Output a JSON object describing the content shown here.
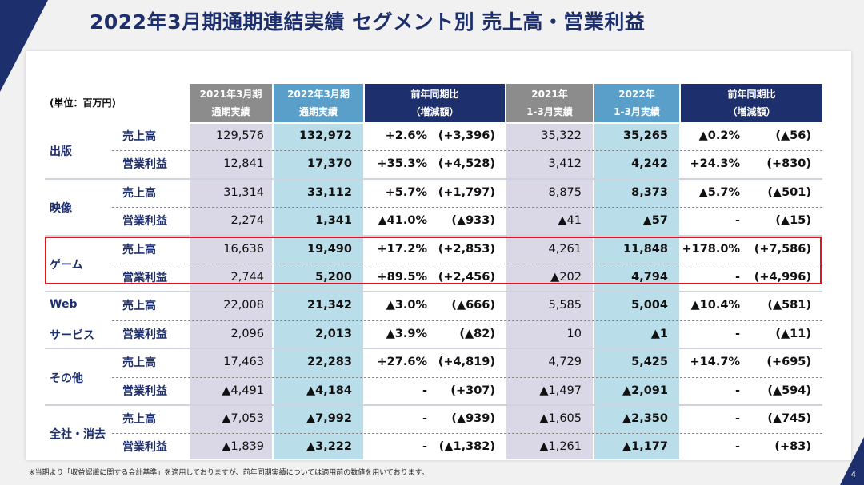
{
  "title": "2022年3月期通期連結実績 セグメント別 売上高・営業利益",
  "unit": "(単位：百万円)",
  "headers": {
    "prev_fy": [
      "2021年3月期",
      "通期実績"
    ],
    "curr_fy": [
      "2022年3月期",
      "通期実績"
    ],
    "fy_cmp": [
      "前年同期比",
      "（増減額）"
    ],
    "prev_q": [
      "2021年",
      "1-3月実績"
    ],
    "curr_q": [
      "2022年",
      "1-3月実績"
    ],
    "q_cmp": [
      "前年同期比",
      "（増減額）"
    ]
  },
  "segments": [
    {
      "name": "出版",
      "rows": [
        {
          "metric": "売上高",
          "prev_fy": "129,576",
          "curr_fy": "132,972",
          "fy_pct": "+2.6%",
          "fy_amt": "(+3,396)",
          "prev_q": "35,322",
          "curr_q": "35,265",
          "q_pct": "▲0.2%",
          "q_amt": "(▲56)"
        },
        {
          "metric": "営業利益",
          "prev_fy": "12,841",
          "curr_fy": "17,370",
          "fy_pct": "+35.3%",
          "fy_amt": "(+4,528)",
          "prev_q": "3,412",
          "curr_q": "4,242",
          "q_pct": "+24.3%",
          "q_amt": "(+830)"
        }
      ]
    },
    {
      "name": "映像",
      "rows": [
        {
          "metric": "売上高",
          "prev_fy": "31,314",
          "curr_fy": "33,112",
          "fy_pct": "+5.7%",
          "fy_amt": "(+1,797)",
          "prev_q": "8,875",
          "curr_q": "8,373",
          "q_pct": "▲5.7%",
          "q_amt": "(▲501)"
        },
        {
          "metric": "営業利益",
          "prev_fy": "2,274",
          "curr_fy": "1,341",
          "fy_pct": "▲41.0%",
          "fy_amt": "(▲933)",
          "prev_q": "▲41",
          "curr_q": "▲57",
          "q_pct": "-",
          "q_amt": "(▲15)"
        }
      ]
    },
    {
      "name": "ゲーム",
      "rows": [
        {
          "metric": "売上高",
          "prev_fy": "16,636",
          "curr_fy": "19,490",
          "fy_pct": "+17.2%",
          "fy_amt": "(+2,853)",
          "prev_q": "4,261",
          "curr_q": "11,848",
          "q_pct": "+178.0%",
          "q_amt": "(+7,586)"
        },
        {
          "metric": "営業利益",
          "prev_fy": "2,744",
          "curr_fy": "5,200",
          "fy_pct": "+89.5%",
          "fy_amt": "(+2,456)",
          "prev_q": "▲202",
          "curr_q": "4,794",
          "q_pct": "-",
          "q_amt": "(+4,996)"
        }
      ]
    },
    {
      "name": "Web",
      "name2": "サービス",
      "rows": [
        {
          "metric": "売上高",
          "prev_fy": "22,008",
          "curr_fy": "21,342",
          "fy_pct": "▲3.0%",
          "fy_amt": "(▲666)",
          "prev_q": "5,585",
          "curr_q": "5,004",
          "q_pct": "▲10.4%",
          "q_amt": "(▲581)"
        },
        {
          "metric": "営業利益",
          "prev_fy": "2,096",
          "curr_fy": "2,013",
          "fy_pct": "▲3.9%",
          "fy_amt": "(▲82)",
          "prev_q": "10",
          "curr_q": "▲1",
          "q_pct": "-",
          "q_amt": "(▲11)"
        }
      ]
    },
    {
      "name": "その他",
      "rows": [
        {
          "metric": "売上高",
          "prev_fy": "17,463",
          "curr_fy": "22,283",
          "fy_pct": "+27.6%",
          "fy_amt": "(+4,819)",
          "prev_q": "4,729",
          "curr_q": "5,425",
          "q_pct": "+14.7%",
          "q_amt": "(+695)"
        },
        {
          "metric": "営業利益",
          "prev_fy": "▲4,491",
          "curr_fy": "▲4,184",
          "fy_pct": "-",
          "fy_amt": "(+307)",
          "prev_q": "▲1,497",
          "curr_q": "▲2,091",
          "q_pct": "-",
          "q_amt": "(▲594)"
        }
      ]
    },
    {
      "name": "全社・消去",
      "rows": [
        {
          "metric": "売上高",
          "prev_fy": "▲7,053",
          "curr_fy": "▲7,992",
          "fy_pct": "-",
          "fy_amt": "(▲939)",
          "prev_q": "▲1,605",
          "curr_q": "▲2,350",
          "q_pct": "-",
          "q_amt": "(▲745)"
        },
        {
          "metric": "営業利益",
          "prev_fy": "▲1,839",
          "curr_fy": "▲3,222",
          "fy_pct": "-",
          "fy_amt": "(▲1,382)",
          "prev_q": "▲1,261",
          "curr_q": "▲1,177",
          "q_pct": "-",
          "q_amt": "(+83)"
        }
      ]
    }
  ],
  "footnote": "※当期より「収益認識に関する会計基準」を適用しておりますが、前年同期実績については適用前の数値を用いております。",
  "page_number": "4",
  "colors": {
    "navy": "#1e2f6e",
    "gray_header": "#8c8c8c",
    "blue_header": "#5a9fca",
    "highlight": "#e0161e"
  }
}
